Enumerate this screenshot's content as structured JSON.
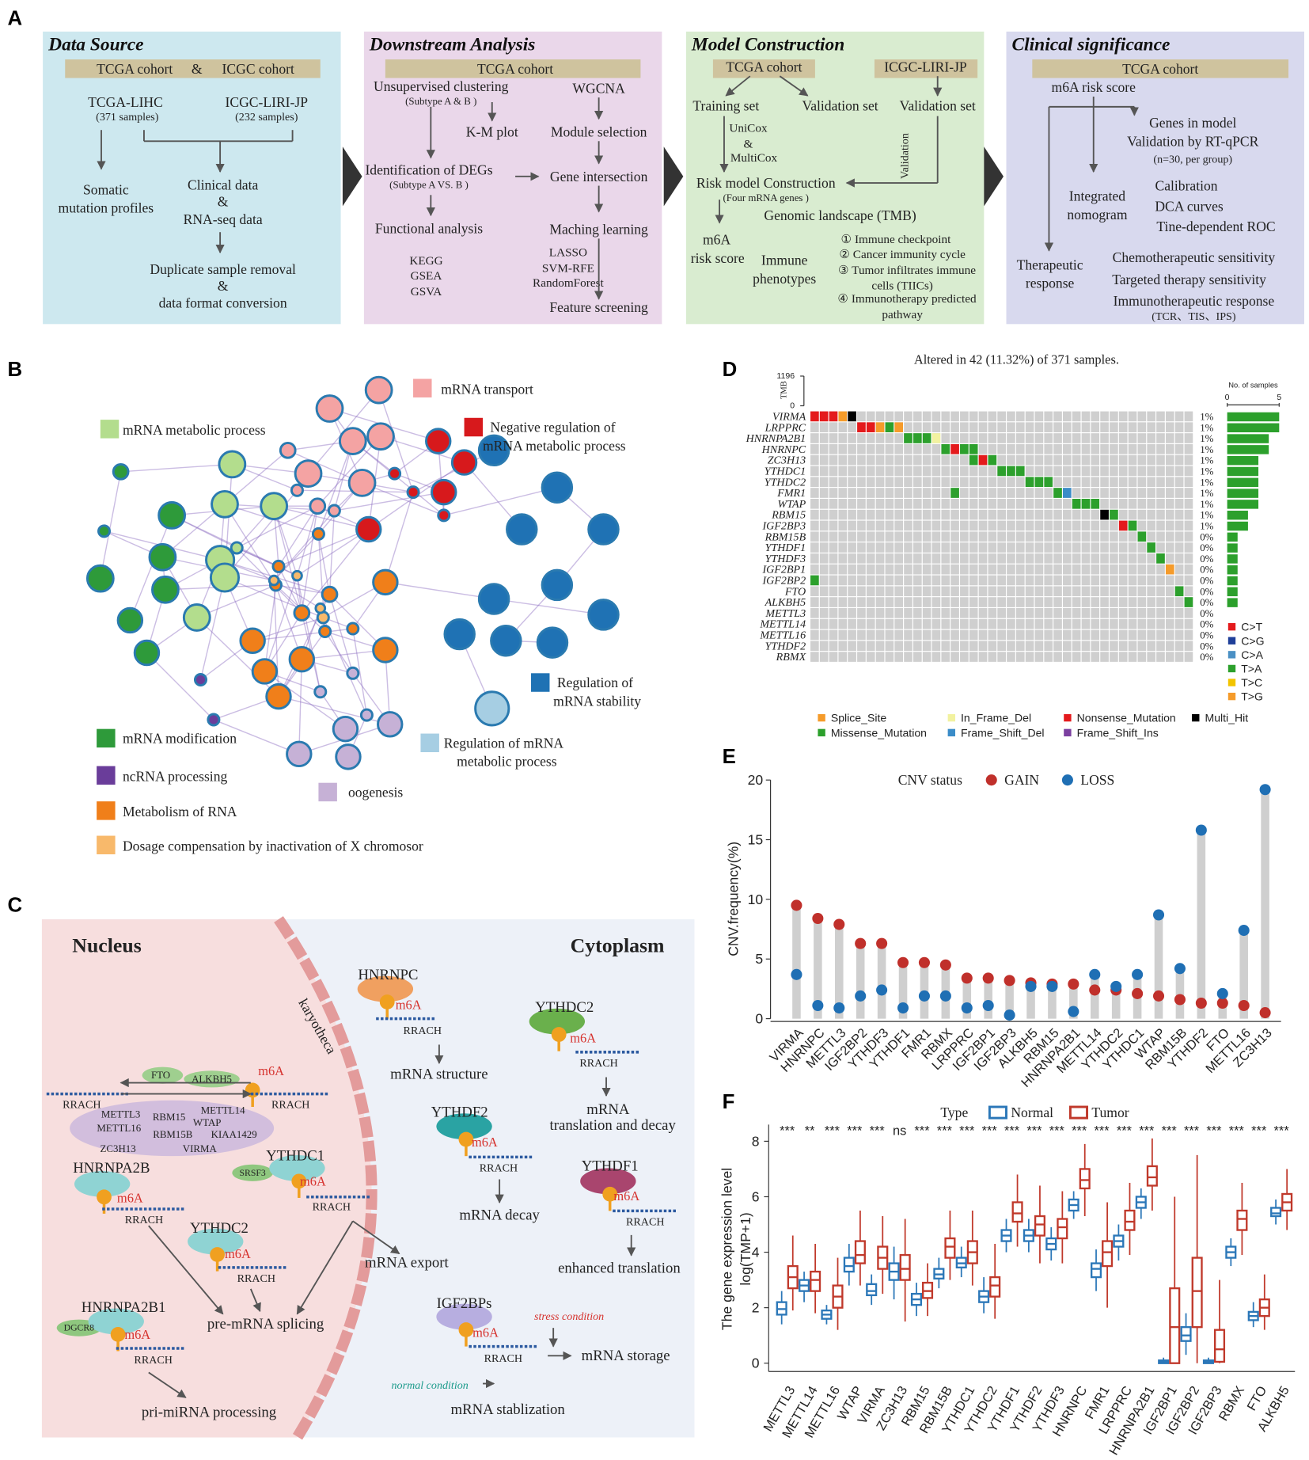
{
  "panel_labels": [
    "A",
    "B",
    "C",
    "D",
    "E",
    "F"
  ],
  "panel_a": {
    "boxes": [
      {
        "title": "Data Source",
        "texts": [
          "TCGA cohort",
          "&",
          "ICGC cohort",
          "TCGA-LIHC",
          "(371 samples)",
          "ICGC-LIRI-JP",
          "(232 samples)",
          "Somatic",
          "mutation profiles",
          "Clinical data",
          "&",
          "RNA-seq data",
          "Duplicate sample removal",
          "&",
          "data format conversion"
        ]
      },
      {
        "title": "Downstream Analysis",
        "texts": [
          "TCGA cohort",
          "Unsupervised clustering",
          "(Subtype A & B )",
          "WGCNA",
          "K-M plot",
          "Module selection",
          "Identification of  DEGs",
          "(Subtype A VS. B )",
          "Gene intersection",
          "Functional analysis",
          "Maching learning",
          "KEGG",
          "GSEA",
          "GSVA",
          "LASSO",
          "SVM-RFE",
          "RandomForest",
          "Feature screening"
        ]
      },
      {
        "title": "Model Construction",
        "texts": [
          "TCGA cohort",
          "ICGC-LIRI-JP",
          "Training set",
          "Validation set",
          "Validation set",
          "UniCox",
          "&",
          "MultiCox",
          "Validation",
          "Risk  model Construction",
          "(Four mRNA genes )",
          "Genomic landscape (TMB)",
          "m6A",
          "risk score",
          "Immune",
          "phenotypes",
          "① Immune checkpoint",
          "② Cancer immunity cycle",
          "③ Tumor infiltrates immune",
          "cells (TIICs)",
          "④ Immunotherapy predicted",
          "pathway"
        ]
      },
      {
        "title": "Clinical significance",
        "texts": [
          "TCGA cohort",
          "m6A risk score",
          "Genes in model",
          "Validation by RT-qPCR",
          "(n=30, per group)",
          "Integrated",
          "nomogram",
          "Calibration",
          "DCA curves",
          "Tine-dependent ROC",
          "Therapeutic",
          "response",
          "Chemotherapeutic sensitivity",
          "Targeted therapy sensitivity",
          "Immunotherapeutic response",
          "(TCR、TIS、IPS)"
        ]
      }
    ]
  },
  "panel_b": {
    "legend": [
      {
        "label": [
          "mRNA transport"
        ],
        "color": "#f4a3a3"
      },
      {
        "label": [
          "Negative regulation of",
          "mRNA metabolic process"
        ],
        "color": "#d7191c"
      },
      {
        "label": [
          "mRNA metabolic process"
        ],
        "color": "#b3dd8d"
      },
      {
        "label": [
          "Regulation of",
          "mRNA stability"
        ],
        "color": "#1f72b4"
      },
      {
        "label": [
          "Regulation of mRNA",
          "metabolic process"
        ],
        "color": "#a6cee3"
      },
      {
        "label": [
          "mRNA modification"
        ],
        "color": "#2e9a3a"
      },
      {
        "label": [
          "ncRNA processing"
        ],
        "color": "#6a3d9a"
      },
      {
        "label": [
          "Metabolism of RNA"
        ],
        "color": "#f07f1a"
      },
      {
        "label": [
          "Dosage compensation by inactivation of X chromosor"
        ],
        "color": "#f8b96b"
      },
      {
        "label": [
          "oogenesis"
        ],
        "color": "#c6b1d6"
      }
    ]
  },
  "panel_c": {
    "texts": [
      "Nucleus",
      "Cytoplasm",
      "karyotheca",
      "HNRNPC",
      "m6A",
      "RRACH",
      "mRNA structure",
      "YTHDC2",
      "m6A",
      "RRACH",
      "mRNA",
      "translation and decay",
      "FTO",
      "ALKBH5",
      "m6A",
      "RRACH",
      "RRACH",
      "METTL3",
      "RBM15",
      "METTL14",
      "WTAP",
      "METTL16",
      "RBM15B",
      "KIAA1429",
      "ZC3H13",
      "VIRMA",
      "HNRNPA2B",
      "m6A",
      "RRACH",
      "YTHDC1",
      "SRSF3",
      "m6A",
      "RRACH",
      "YTHDF2",
      "m6A",
      "RRACH",
      "mRNA decay",
      "YTHDF1",
      "m6A",
      "RRACH",
      "enhanced translation",
      "YTHDC2",
      "m6A",
      "RRACH",
      "mRNA export",
      "pre-mRNA splicing",
      "IGF2BPs",
      "m6A",
      "RRACH",
      "stress condition",
      "mRNA storage",
      "normal condition",
      "mRNA stablization",
      "HNRNPA2B1",
      "DGCR8",
      "m6A",
      "RRACH",
      "pri-miRNA processing"
    ]
  },
  "chart_data": [
    {
      "type": "oncoprint",
      "title": "Altered in 42 (11.32%) of 371 samples.",
      "genes": [
        "VIRMA",
        "LRPPRC",
        "HNRNPA2B1",
        "HNRNPC",
        "ZC3H13",
        "YTHDC1",
        "YTHDC2",
        "FMR1",
        "WTAP",
        "RBM15",
        "IGF2BP3",
        "RBM15B",
        "YTHDF1",
        "YTHDF3",
        "IGF2BP1",
        "IGF2BP2",
        "FTO",
        "ALKBH5",
        "METTL3",
        "METTL14",
        "METTL16",
        "YTHDF2",
        "RBMX"
      ],
      "percent_labels": [
        "1%",
        "1%",
        "1%",
        "1%",
        "1%",
        "1%",
        "1%",
        "1%",
        "1%",
        "1%",
        "1%",
        "0%",
        "0%",
        "0%",
        "0%",
        "0%",
        "0%",
        "0%",
        "0%",
        "0%",
        "0%",
        "0%",
        "0%"
      ],
      "values": [
        5,
        5,
        4,
        4,
        3,
        3,
        3,
        3,
        3,
        2,
        2,
        1,
        1,
        1,
        1,
        1,
        1,
        1,
        0,
        0,
        0,
        0,
        0
      ],
      "x_label": "No. of samples",
      "xlim": [
        0,
        5
      ],
      "xticks": [
        0,
        5
      ],
      "tmb_label": "TMB",
      "tmb_yticks": [
        0,
        1196
      ],
      "alterations": [
        [
          [
            0,
            "Nonsense_Mutation"
          ],
          [
            1,
            "Nonsense_Mutation"
          ],
          [
            2,
            "Nonsense_Mutation"
          ],
          [
            3,
            "Splice_Site"
          ],
          [
            4,
            "Multi_Hit"
          ]
        ],
        [
          [
            5,
            "Nonsense_Mutation"
          ],
          [
            6,
            "Nonsense_Mutation"
          ],
          [
            7,
            "Splice_Site"
          ],
          [
            8,
            "Missense_Mutation"
          ],
          [
            9,
            "Splice_Site"
          ]
        ],
        [
          [
            10,
            "Missense_Mutation"
          ],
          [
            11,
            "Missense_Mutation"
          ],
          [
            12,
            "Missense_Mutation"
          ],
          [
            13,
            "In_Frame_Del"
          ]
        ],
        [
          [
            14,
            "Missense_Mutation"
          ],
          [
            15,
            "Nonsense_Mutation"
          ],
          [
            16,
            "Missense_Mutation"
          ],
          [
            17,
            "Missense_Mutation"
          ]
        ],
        [
          [
            17,
            "Missense_Mutation"
          ],
          [
            18,
            "Nonsense_Mutation"
          ],
          [
            19,
            "Missense_Mutation"
          ]
        ],
        [
          [
            20,
            "Missense_Mutation"
          ],
          [
            21,
            "Missense_Mutation"
          ],
          [
            22,
            "Missense_Mutation"
          ]
        ],
        [
          [
            23,
            "Missense_Mutation"
          ],
          [
            24,
            "Missense_Mutation"
          ],
          [
            25,
            "Missense_Mutation"
          ]
        ],
        [
          [
            15,
            "Missense_Mutation"
          ],
          [
            26,
            "Missense_Mutation"
          ],
          [
            27,
            "Frame_Shift_Del"
          ]
        ],
        [
          [
            28,
            "Missense_Mutation"
          ],
          [
            29,
            "Missense_Mutation"
          ],
          [
            30,
            "Missense_Mutation"
          ]
        ],
        [
          [
            31,
            "Multi_Hit"
          ],
          [
            32,
            "Missense_Mutation"
          ]
        ],
        [
          [
            33,
            "Nonsense_Mutation"
          ],
          [
            34,
            "Missense_Mutation"
          ]
        ],
        [
          [
            35,
            "Missense_Mutation"
          ]
        ],
        [
          [
            36,
            "Missense_Mutation"
          ]
        ],
        [
          [
            37,
            "Missense_Mutation"
          ]
        ],
        [
          [
            38,
            "Splice_Site"
          ]
        ],
        [
          [
            0,
            "Missense_Mutation"
          ]
        ],
        [
          [
            39,
            "Missense_Mutation"
          ]
        ],
        [
          [
            40,
            "Missense_Mutation"
          ]
        ],
        [],
        [],
        [],
        [],
        []
      ],
      "mutation_types": [
        {
          "name": "Splice_Site",
          "color": "#f59b2a"
        },
        {
          "name": "In_Frame_Del",
          "color": "#f2f2a0"
        },
        {
          "name": "Nonsense_Mutation",
          "color": "#e41a1c"
        },
        {
          "name": "Multi_Hit",
          "color": "#000000"
        },
        {
          "name": "Missense_Mutation",
          "color": "#2ca02c"
        },
        {
          "name": "Frame_Shift_Del",
          "color": "#3a8cc8"
        },
        {
          "name": "Frame_Shift_Ins",
          "color": "#7b3fa0"
        }
      ],
      "snv_classes": [
        {
          "name": "C>T",
          "color": "#e41a1c"
        },
        {
          "name": "C>G",
          "color": "#1f3f99"
        },
        {
          "name": "C>A",
          "color": "#4a90c4"
        },
        {
          "name": "T>A",
          "color": "#2ca02c"
        },
        {
          "name": "T>C",
          "color": "#f2c400"
        },
        {
          "name": "T>G",
          "color": "#f59b2a"
        }
      ]
    },
    {
      "type": "lollipop",
      "legend_title": "CNV status",
      "y_label": "CNV.frequency(%)",
      "categories": [
        "VIRMA",
        "HNRNPC",
        "METTL3",
        "IGF2BP2",
        "YTHDF3",
        "YTHDF1",
        "FMR1",
        "RBMX",
        "LRPPRC",
        "IGF2BP1",
        "IGF2BP3",
        "ALKBH5",
        "RBM15",
        "HNRNPA2B1",
        "METTL14",
        "YTHDC2",
        "YTHDC1",
        "WTAP",
        "RBM15B",
        "YTHDF2",
        "FTO",
        "METTL16",
        "ZC3H13"
      ],
      "series": [
        {
          "name": "GAIN",
          "color": "#c0302b",
          "values": [
            9.5,
            8.4,
            7.9,
            6.3,
            6.3,
            4.7,
            4.7,
            4.5,
            3.4,
            3.4,
            3.2,
            3.0,
            2.9,
            2.9,
            2.4,
            2.4,
            2.1,
            1.9,
            1.6,
            1.3,
            1.3,
            1.1,
            0.5
          ]
        },
        {
          "name": "LOSS",
          "color": "#1f6fb4",
          "values": [
            3.7,
            1.1,
            0.9,
            1.9,
            2.4,
            0.9,
            1.9,
            1.9,
            0.9,
            1.1,
            0.3,
            2.7,
            2.7,
            0.6,
            3.7,
            2.7,
            3.7,
            8.7,
            4.2,
            15.8,
            2.1,
            7.4,
            19.2
          ]
        }
      ],
      "ylim": [
        0,
        20
      ],
      "yticks": [
        0,
        5,
        10,
        15,
        20
      ]
    },
    {
      "type": "boxplot",
      "legend_title": "Type",
      "y_label": [
        "The gene expression level",
        "log(TMP+1)"
      ],
      "categories": [
        "METTL3",
        "METTL14",
        "METTL16",
        "WTAP",
        "VIRMA",
        "ZC3H13",
        "RBM15",
        "RBM15B",
        "YTHDC1",
        "YTHDC2",
        "YTHDF1",
        "YTHDF2",
        "YTHDF3",
        "HNRNPC",
        "FMR1",
        "LRPPRC",
        "HNRNPA2B1",
        "IGF2BP1",
        "IGF2BP2",
        "IGF2BP3",
        "RBMX",
        "FTO",
        "ALKBH5"
      ],
      "significance": [
        "***",
        "**",
        "***",
        "***",
        "***",
        "ns",
        "***",
        "***",
        "***",
        "***",
        "***",
        "***",
        "***",
        "***",
        "***",
        "***",
        "***",
        "***",
        "***",
        "***",
        "***",
        "***",
        "***"
      ],
      "series": [
        {
          "name": "Normal",
          "color": "#2b77b8",
          "values": [
            [
              1.4,
              1.75,
              1.95,
              2.2,
              2.6
            ],
            [
              2.2,
              2.6,
              2.8,
              3.0,
              3.3
            ],
            [
              1.4,
              1.6,
              1.75,
              1.9,
              2.1
            ],
            [
              2.8,
              3.3,
              3.5,
              3.8,
              4.3
            ],
            [
              2.1,
              2.45,
              2.6,
              2.85,
              3.2
            ],
            [
              2.3,
              3.0,
              3.3,
              3.6,
              4.2
            ],
            [
              1.7,
              2.1,
              2.3,
              2.5,
              2.9
            ],
            [
              2.7,
              3.05,
              3.2,
              3.4,
              3.8
            ],
            [
              3.1,
              3.45,
              3.6,
              3.8,
              4.2
            ],
            [
              1.8,
              2.2,
              2.4,
              2.6,
              3.1
            ],
            [
              4.0,
              4.4,
              4.6,
              4.8,
              5.2
            ],
            [
              4.0,
              4.4,
              4.6,
              4.8,
              5.2
            ],
            [
              3.7,
              4.1,
              4.3,
              4.5,
              4.9
            ],
            [
              5.2,
              5.5,
              5.7,
              5.9,
              6.2
            ],
            [
              2.6,
              3.1,
              3.4,
              3.6,
              4.1
            ],
            [
              3.7,
              4.2,
              4.4,
              4.6,
              5.0
            ],
            [
              5.2,
              5.6,
              5.8,
              6.0,
              6.3
            ],
            [
              0.0,
              0.0,
              0.05,
              0.1,
              0.2
            ],
            [
              0.3,
              0.8,
              1.0,
              1.3,
              1.8
            ],
            [
              0.0,
              0.0,
              0.05,
              0.1,
              0.2
            ],
            [
              3.5,
              3.8,
              4.0,
              4.2,
              4.5
            ],
            [
              1.3,
              1.55,
              1.7,
              1.85,
              2.2
            ],
            [
              5.0,
              5.3,
              5.4,
              5.6,
              5.9
            ]
          ]
        },
        {
          "name": "Tumor",
          "color": "#c0392b",
          "values": [
            [
              1.9,
              2.7,
              3.1,
              3.5,
              4.6
            ],
            [
              1.8,
              2.6,
              3.0,
              3.3,
              4.3
            ],
            [
              1.2,
              2.0,
              2.4,
              2.8,
              3.8
            ],
            [
              2.8,
              3.6,
              3.9,
              4.4,
              5.5
            ],
            [
              2.5,
              3.4,
              3.8,
              4.2,
              5.3
            ],
            [
              1.5,
              3.0,
              3.4,
              3.9,
              5.2
            ],
            [
              1.7,
              2.35,
              2.6,
              2.9,
              3.6
            ],
            [
              3.0,
              3.8,
              4.2,
              4.5,
              5.5
            ],
            [
              2.8,
              3.6,
              4.0,
              4.4,
              5.5
            ],
            [
              1.6,
              2.4,
              2.8,
              3.1,
              4.3
            ],
            [
              4.2,
              5.1,
              5.4,
              5.8,
              6.8
            ],
            [
              3.6,
              4.6,
              5.0,
              5.3,
              6.4
            ],
            [
              3.6,
              4.5,
              4.9,
              5.2,
              6.2
            ],
            [
              5.3,
              6.3,
              6.6,
              7.0,
              7.9
            ],
            [
              2.0,
              3.5,
              4.0,
              4.4,
              5.8
            ],
            [
              3.9,
              4.8,
              5.1,
              5.5,
              6.5
            ],
            [
              5.5,
              6.4,
              6.7,
              7.1,
              8.1
            ],
            [
              0.0,
              0.0,
              1.3,
              2.7,
              6.0
            ],
            [
              0.0,
              1.3,
              2.6,
              3.8,
              7.5
            ],
            [
              0.0,
              0.05,
              0.5,
              1.2,
              3.0
            ],
            [
              3.9,
              4.8,
              5.2,
              5.5,
              6.5
            ],
            [
              1.2,
              1.7,
              2.0,
              2.3,
              3.2
            ],
            [
              4.8,
              5.5,
              5.8,
              6.1,
              7.0
            ]
          ]
        }
      ],
      "ylim": [
        -0.3,
        8.6
      ],
      "yticks": [
        0,
        2,
        4,
        6,
        8
      ]
    }
  ]
}
